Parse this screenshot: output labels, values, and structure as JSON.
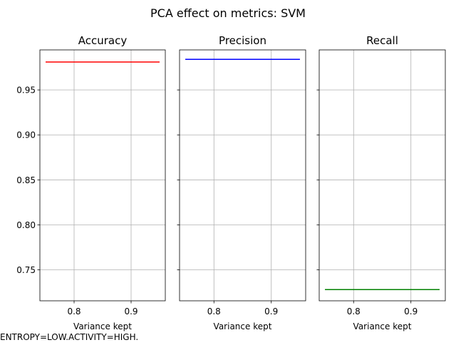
{
  "figure": {
    "suptitle": "PCA effect on metrics: SVM",
    "footnote": "ENTROPY=LOW.ACTIVITY=HIGH."
  },
  "chart_data": [
    {
      "type": "line",
      "title": "Accuracy",
      "xlabel": "Variance kept",
      "ylabel": "",
      "x": [
        0.75,
        0.8,
        0.85,
        0.9,
        0.95
      ],
      "series": [
        {
          "values": [
            0.981,
            0.981,
            0.981,
            0.981,
            0.981
          ],
          "color": "#ff0000"
        }
      ],
      "xlim": [
        0.74,
        0.96
      ],
      "ylim": [
        0.7155,
        0.9945
      ],
      "xticks": [
        0.8,
        0.9
      ],
      "xtick_labels": [
        "0.8",
        "0.9"
      ],
      "yticks": [
        0.75,
        0.8,
        0.85,
        0.9,
        0.95
      ],
      "ytick_labels": [
        "0.75",
        "0.80",
        "0.85",
        "0.90",
        "0.95"
      ],
      "grid": true
    },
    {
      "type": "line",
      "title": "Precision",
      "xlabel": "Variance kept",
      "ylabel": "",
      "x": [
        0.75,
        0.8,
        0.85,
        0.9,
        0.95
      ],
      "series": [
        {
          "values": [
            0.984,
            0.984,
            0.984,
            0.984,
            0.984
          ],
          "color": "#0000ff"
        }
      ],
      "xlim": [
        0.74,
        0.96
      ],
      "ylim": [
        0.7155,
        0.9945
      ],
      "xticks": [
        0.8,
        0.9
      ],
      "xtick_labels": [
        "0.8",
        "0.9"
      ],
      "yticks": [
        0.75,
        0.8,
        0.85,
        0.9,
        0.95
      ],
      "ytick_labels": [
        "",
        "",
        "",
        "",
        ""
      ],
      "grid": true
    },
    {
      "type": "line",
      "title": "Recall",
      "xlabel": "Variance kept",
      "ylabel": "",
      "x": [
        0.75,
        0.8,
        0.85,
        0.9,
        0.95
      ],
      "series": [
        {
          "values": [
            0.728,
            0.728,
            0.728,
            0.728,
            0.728
          ],
          "color": "#008000"
        }
      ],
      "xlim": [
        0.74,
        0.96
      ],
      "ylim": [
        0.7155,
        0.9945
      ],
      "xticks": [
        0.8,
        0.9
      ],
      "xtick_labels": [
        "0.8",
        "0.9"
      ],
      "yticks": [
        0.75,
        0.8,
        0.85,
        0.9,
        0.95
      ],
      "ytick_labels": [
        "",
        "",
        "",
        "",
        ""
      ],
      "grid": true
    }
  ]
}
